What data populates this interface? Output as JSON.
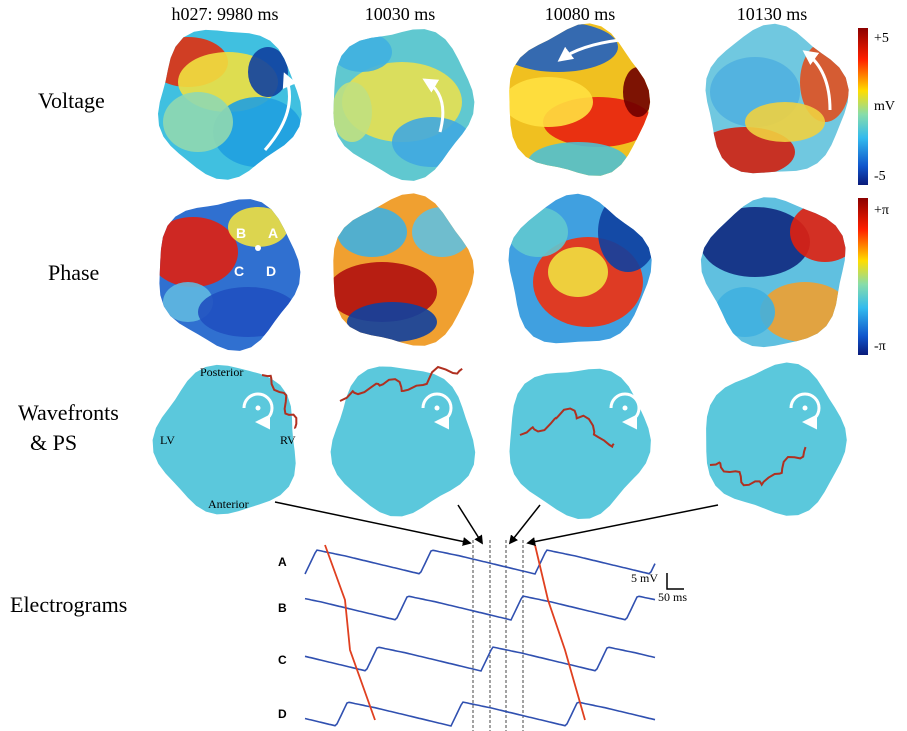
{
  "columns": [
    "h027: 9980 ms",
    "10030 ms",
    "10080 ms",
    "10130 ms"
  ],
  "rows": {
    "voltage": "Voltage",
    "phase": "Phase",
    "wavefronts": [
      "Wavefronts",
      "& PS"
    ],
    "electrograms": "Electrograms"
  },
  "voltage_colorbar": {
    "top": "+5",
    "unit": "mV",
    "bottom": "-5"
  },
  "phase_colorbar": {
    "top": "+π",
    "bottom": "-π"
  },
  "phase_sites": [
    "B",
    "A",
    "C",
    "D"
  ],
  "orientation": {
    "posterior": "Posterior",
    "left": "LV",
    "right": "RV",
    "anterior": "Anterior"
  },
  "traces": [
    "A",
    "B",
    "C",
    "D"
  ],
  "scale_bar": {
    "voltage": "5 mV",
    "time": "50 ms"
  }
}
